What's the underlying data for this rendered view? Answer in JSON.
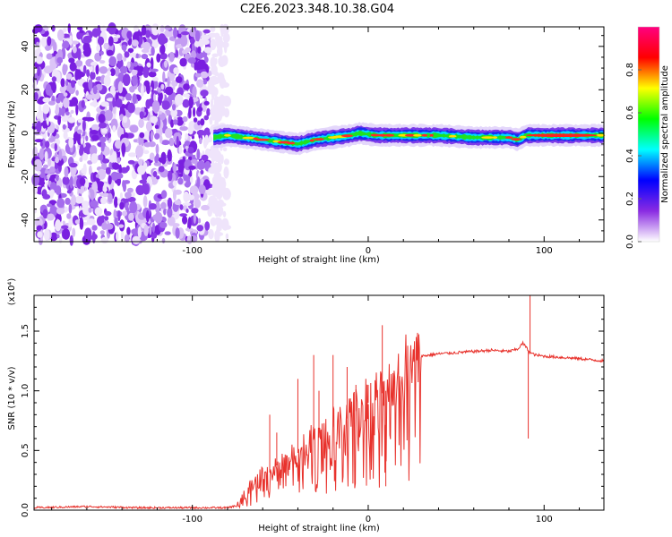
{
  "chart_data": [
    {
      "type": "heatmap",
      "title": "C2E6.2023.348.10.38.G04",
      "xlabel": "Height of straight line (km)",
      "ylabel": "Frequency (Hz)",
      "xlim": [
        -190,
        134
      ],
      "ylim": [
        -50,
        49
      ],
      "x_ticks": [
        -100,
        0,
        100
      ],
      "x_tick_labels": [
        "-100",
        "0",
        "100"
      ],
      "y_ticks": [
        40,
        20,
        0,
        -20,
        -40
      ],
      "y_tick_labels": [
        "40",
        "20",
        "0",
        "-20",
        "-40"
      ],
      "colorbar": {
        "label": "Normalized spectral amplitude",
        "range": [
          0,
          1
        ],
        "ticks": [
          0.0,
          0.2,
          0.4,
          0.6,
          0.8
        ],
        "tick_labels": [
          "0.0",
          "0.2",
          "0.4",
          "0.6",
          "0.8"
        ],
        "colormap": [
          "#ffffff",
          "#8a2be2",
          "#0000ff",
          "#00ffff",
          "#00ff00",
          "#ffff00",
          "#ff0000",
          "#ff0080"
        ]
      },
      "signal_ridge": {
        "x": [
          -88,
          -80,
          -70,
          -60,
          -50,
          -40,
          -30,
          -20,
          -10,
          -5,
          0,
          5,
          10,
          20,
          40,
          60,
          80,
          85,
          90,
          100,
          110,
          120,
          134
        ],
        "y": [
          -2,
          -1,
          -2,
          -3,
          -4,
          -5,
          -3,
          -2,
          -1,
          0,
          -0.5,
          -1,
          -1,
          -1,
          -1,
          -2,
          -2,
          -3,
          -1,
          -1,
          -1,
          -1,
          -1
        ]
      },
      "noise_extent": [
        -190,
        -80
      ]
    },
    {
      "type": "line",
      "title": "",
      "xlabel": "Height of straight line (km)",
      "ylabel": "SNR (10 * v/v)",
      "y_multiplier": "(x10⁴)",
      "xlim": [
        -190,
        134
      ],
      "ylim": [
        0,
        1.8
      ],
      "x_ticks": [
        -100,
        0,
        100
      ],
      "x_tick_labels": [
        "-100",
        "0",
        "100"
      ],
      "y_ticks": [
        0,
        0.5,
        1.0,
        1.5
      ],
      "y_tick_labels": [
        "0.0",
        "0.5",
        "1.0",
        "1.5"
      ],
      "line_color": "#e8322c",
      "series": [
        {
          "x": [
            -190,
            -160,
            -130,
            -100,
            -80,
            -74,
            -70,
            -66,
            -62,
            -58,
            -54,
            -50,
            -45,
            -40,
            -35,
            -30,
            -25,
            -20,
            -15,
            -10,
            -5,
            0,
            5,
            10,
            15,
            20,
            25,
            30,
            40,
            50,
            60,
            70,
            80,
            85,
            88,
            90,
            92,
            95,
            100,
            110,
            120,
            134
          ],
          "values": [
            0.02,
            0.03,
            0.02,
            0.02,
            0.02,
            0.04,
            0.15,
            0.22,
            0.3,
            0.28,
            0.35,
            0.4,
            0.42,
            0.48,
            0.55,
            0.6,
            0.62,
            0.7,
            0.72,
            0.8,
            0.85,
            0.9,
            0.95,
            1.0,
            1.1,
            1.2,
            1.26,
            1.29,
            1.31,
            1.32,
            1.33,
            1.34,
            1.33,
            1.35,
            1.4,
            1.36,
            1.32,
            1.3,
            1.29,
            1.28,
            1.27,
            1.25
          ]
        }
      ],
      "spikes": [
        {
          "x": -56,
          "y": 0.8
        },
        {
          "x": -52,
          "y": 0.65
        },
        {
          "x": -40,
          "y": 1.1
        },
        {
          "x": -31,
          "y": 1.3
        },
        {
          "x": -28,
          "y": 1.0
        },
        {
          "x": -20,
          "y": 1.3
        },
        {
          "x": -12,
          "y": 1.2
        },
        {
          "x": -7,
          "y": 1.05
        },
        {
          "x": 0,
          "y": 1.05
        },
        {
          "x": 8,
          "y": 1.55
        },
        {
          "x": 10,
          "y": 0.2
        },
        {
          "x": 92,
          "y": 1.8
        },
        {
          "x": 91,
          "y": 0.6
        }
      ]
    }
  ]
}
